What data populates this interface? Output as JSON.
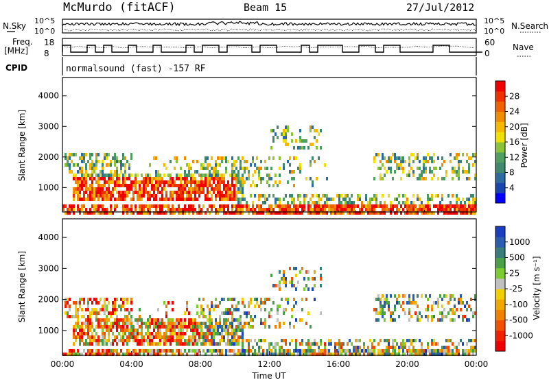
{
  "header": {
    "station": "McMurdo (fitACF)",
    "beam": "Beam 15",
    "date": "27/Jul/2012"
  },
  "noise_panel": {
    "left_label": "N.Sky",
    "right_label": "N.Search",
    "left_ticks": [
      "10^5",
      "10^0"
    ],
    "right_ticks": [
      "10^5",
      "10^0"
    ]
  },
  "freq_panel": {
    "left_label_1": "Freq.",
    "left_label_2": "[MHz]",
    "left_ticks": [
      "18",
      "8"
    ],
    "right_label": "Nave",
    "right_ticks": [
      "60",
      "0"
    ]
  },
  "cpid_panel": {
    "label": "CPID",
    "text": "normalsound (fast) -157 RF"
  },
  "chart_data": [
    {
      "type": "heatmap",
      "title": "",
      "ylabel": "Slant Range [km]",
      "xlabel": "",
      "x_ticks": [
        "00:00",
        "04:00",
        "08:00",
        "12:00",
        "16:00",
        "20:00",
        "00:00"
      ],
      "y_ticks": [
        1000,
        2000,
        3000,
        4000
      ],
      "ylim": [
        200,
        4600
      ],
      "colorbar": {
        "label": "Power [dB]",
        "ticks": [
          4,
          8,
          12,
          16,
          20,
          24,
          28
        ],
        "range": [
          0,
          30
        ],
        "colors": [
          "#0000ff",
          "#1a46b0",
          "#2e6b9e",
          "#3f8a6e",
          "#4fa060",
          "#8cc23a",
          "#f0e000",
          "#f5b800",
          "#f08c00",
          "#f06000",
          "#f03000",
          "#f00000"
        ]
      }
    },
    {
      "type": "heatmap",
      "title": "",
      "ylabel": "Slant Range [km]",
      "xlabel": "Time UT",
      "x_ticks": [
        "00:00",
        "04:00",
        "08:00",
        "12:00",
        "16:00",
        "20:00",
        "00:00"
      ],
      "y_ticks": [
        1000,
        2000,
        3000,
        4000
      ],
      "ylim": [
        200,
        4600
      ],
      "colorbar": {
        "label": "Velocity [m s⁻¹]",
        "ticks": [
          "1000",
          "500",
          "25",
          "-25",
          "-100",
          "-500",
          "-1000"
        ],
        "colors": [
          "#1a3ec0",
          "#2a5cb0",
          "#3a7c7a",
          "#4aa048",
          "#7ccc30",
          "#c0c0c0",
          "#f0d000",
          "#f0a800",
          "#f08000",
          "#f05000",
          "#f02000",
          "#f00000"
        ]
      }
    }
  ]
}
